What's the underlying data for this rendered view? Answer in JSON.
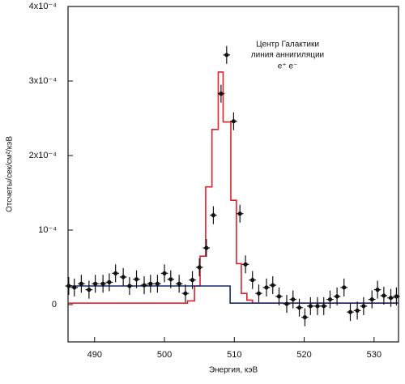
{
  "chart_data": {
    "type": "scatter",
    "annotations": [
      "Центр Галактики",
      "линия аннигиляции",
      "e⁺ e⁻"
    ],
    "xlabel": "Энергия, кэВ",
    "ylabel": "Отсчеты/сек/см²/кэВ",
    "xlim": [
      486.2,
      533.5
    ],
    "ylim": [
      -5e-05,
      0.0004
    ],
    "xticks": [
      490,
      500,
      510,
      520,
      530
    ],
    "yticks": [
      0,
      {
        "value": 0.0001,
        "label": "10⁻⁴"
      },
      {
        "value": 0.0002,
        "label": "2x10⁻⁴"
      },
      {
        "value": 0.0003,
        "label": "3x10⁻⁴"
      },
      {
        "value": 0.0004,
        "label": "4x10⁻⁴"
      }
    ],
    "points": {
      "color": "#111111",
      "x": [
        486.3,
        487.1,
        488.1,
        489.2,
        490.1,
        491.2,
        492.1,
        493.0,
        494.1,
        495.0,
        496.0,
        497.1,
        498.0,
        499.0,
        500.0,
        500.9,
        502.1,
        503.0,
        504.0,
        505.0,
        506.0,
        507.0,
        508.1,
        508.9,
        509.9,
        510.8,
        511.6,
        512.6,
        513.5,
        514.6,
        515.5,
        516.4,
        517.5,
        518.4,
        519.3,
        520.1,
        520.9,
        521.9,
        522.8,
        523.7,
        524.7,
        525.7,
        526.6,
        527.6,
        528.5,
        529.7,
        530.5,
        531.4,
        532.4,
        533.2
      ],
      "values": [
        2.5e-05,
        2.3e-05,
        2.8e-05,
        2e-05,
        2.8e-05,
        2.8e-05,
        3e-05,
        4.2e-05,
        3.7e-05,
        2.5e-05,
        3.4e-05,
        2.6e-05,
        2.8e-05,
        2.8e-05,
        4.2e-05,
        3.4e-05,
        2.8e-05,
        1.5e-05,
        3.3e-05,
        5e-05,
        7.6e-05,
        0.00012,
        0.000283,
        0.000335,
        0.000246,
        0.000122,
        5.4e-05,
        3.3e-05,
        1.5e-05,
        2.3e-05,
        2.6e-05,
        1.1e-05,
        1e-06,
        7e-06,
        -4e-06,
        -1.7e-05,
        -2e-06,
        -2e-06,
        -2e-06,
        7e-06,
        1.1e-05,
        2.3e-05,
        -1e-05,
        -8e-06,
        -2e-06,
        7e-06,
        2e-05,
        1.2e-05,
        9e-06,
        1.1e-05
      ],
      "yerr": 1.2e-05,
      "xerr": 0.5
    },
    "series": [
      {
        "color": "#e0202a",
        "bins": [
          486.2,
          503.3,
          504.3,
          505.1,
          505.9,
          506.8,
          507.7,
          508.4,
          509.5,
          510.3,
          511.0,
          511.8,
          512.6,
          533.5
        ],
        "values": [
          2e-06,
          5e-06,
          2.5e-05,
          6.5e-05,
          0.000158,
          0.000235,
          0.000312,
          0.000245,
          0.00014,
          5.5e-05,
          1.5e-05,
          6e-06,
          2e-06
        ]
      },
      {
        "color": "#1a2a6e",
        "bins": [
          486.2,
          509.4,
          533.5
        ],
        "values": [
          2.5e-05,
          2e-06
        ]
      }
    ]
  }
}
